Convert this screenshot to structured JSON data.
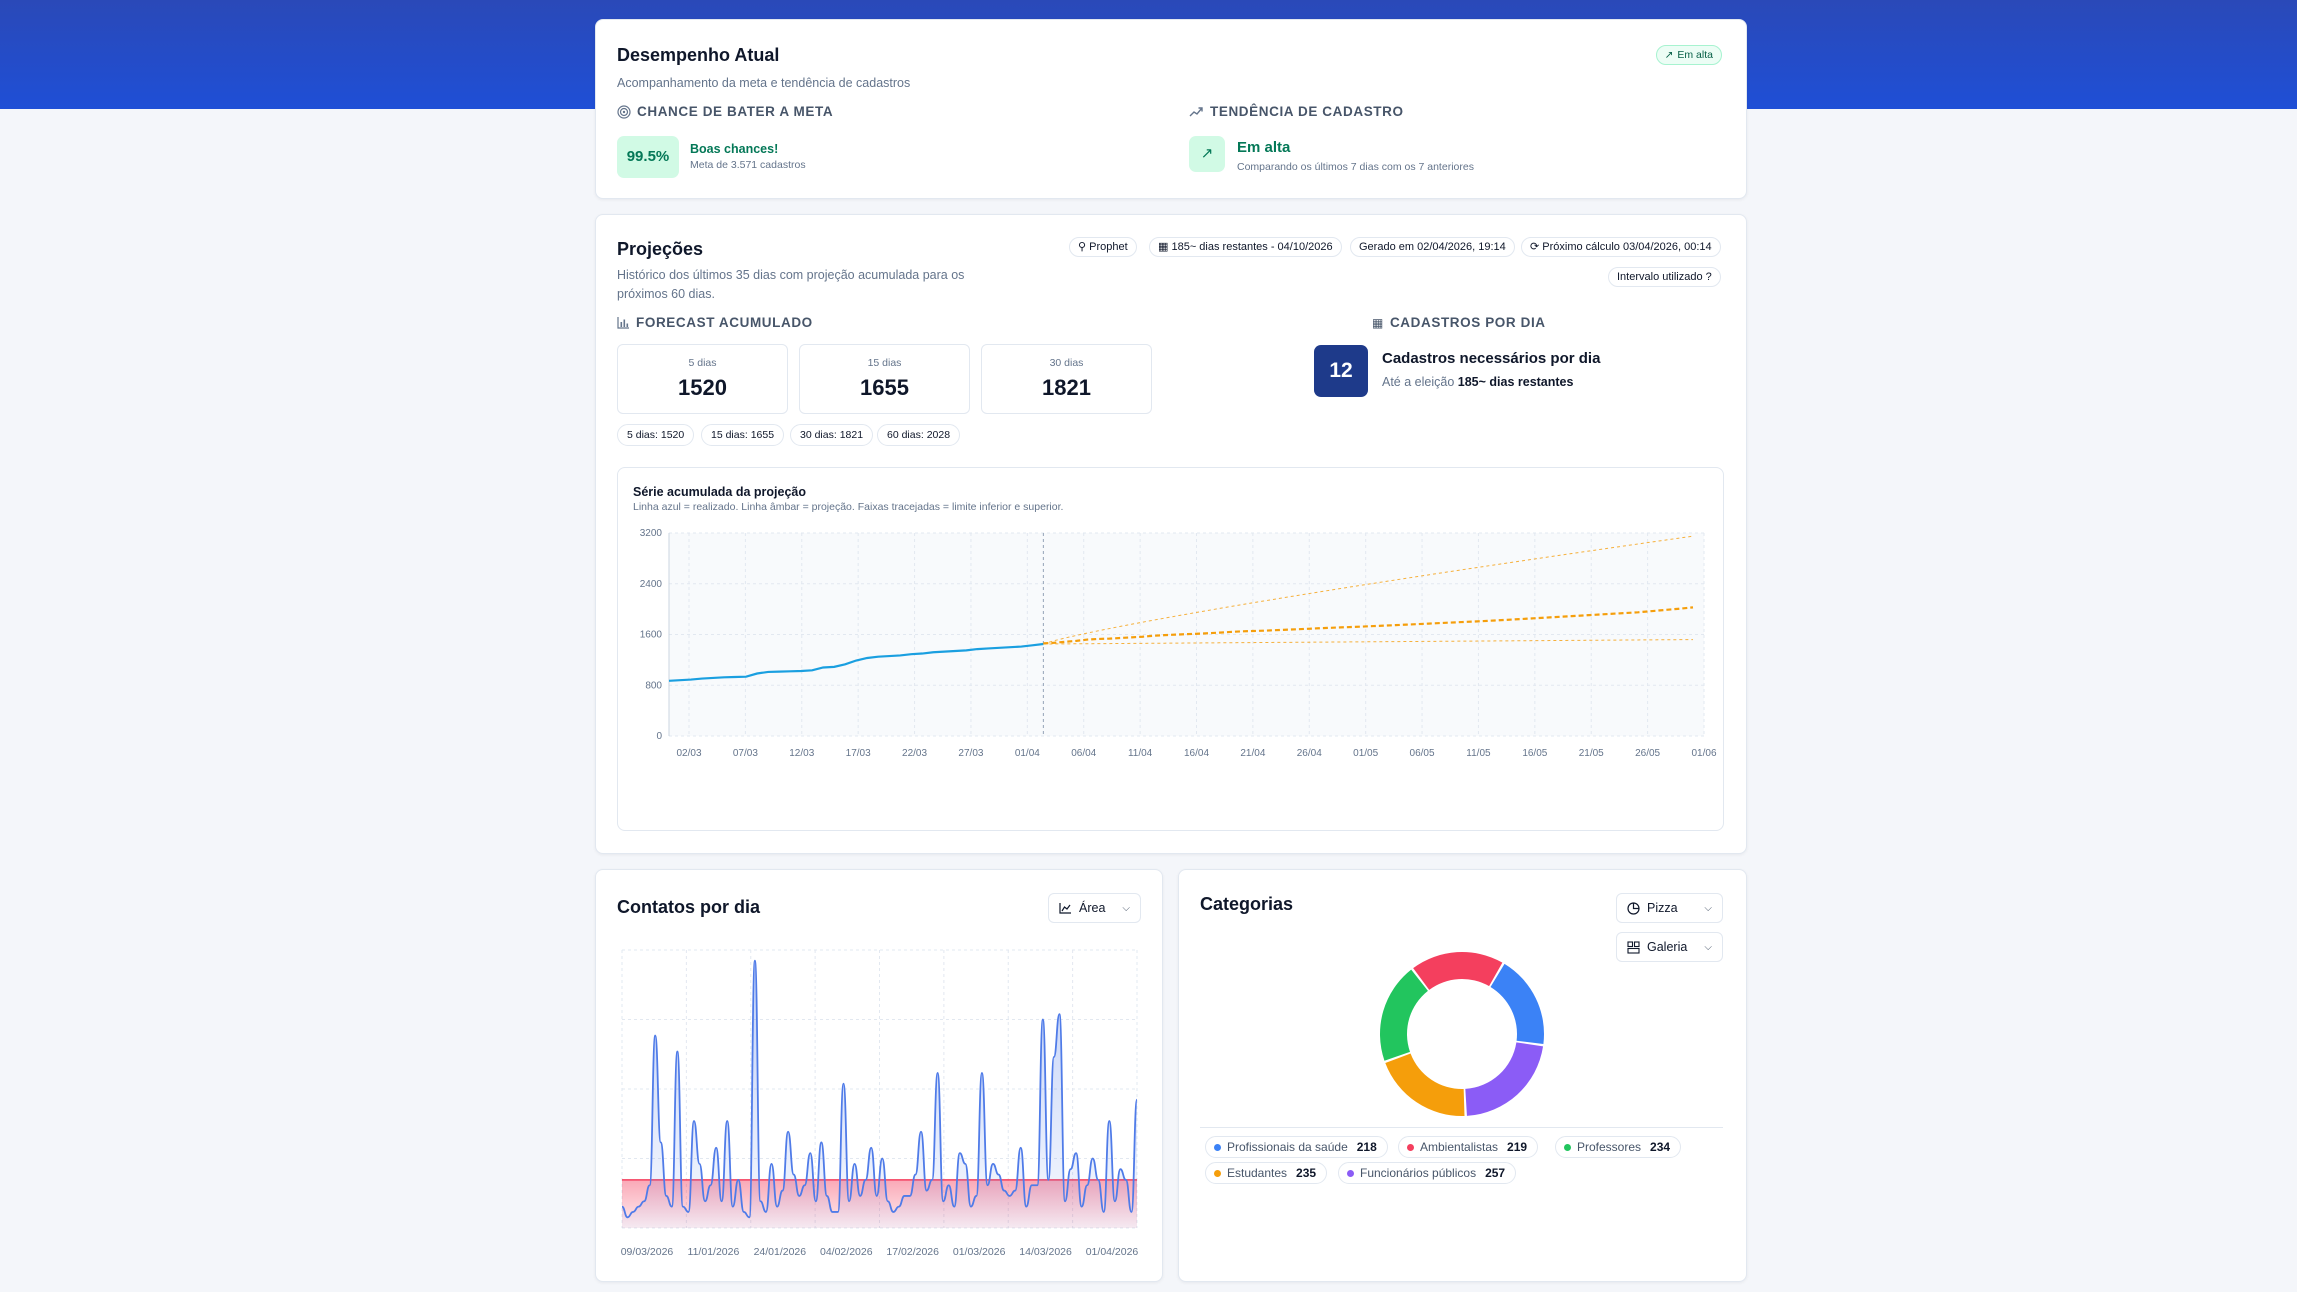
{
  "colors": {
    "band": "#2a49b8",
    "realized": "#1a9fe0",
    "projection": "#f59e0b",
    "success": "#059669",
    "successBg": "#d1fae5",
    "navy": "#1e3a8a",
    "areaLine": "#4f7be8",
    "areaBand": "#f43f5e"
  },
  "performance": {
    "title": "Desempenho Atual",
    "subtitle": "Acompanhamento da meta e tendência de cadastros",
    "badge": "Em alta",
    "chance": {
      "heading": "CHANCE DE BATER A META",
      "value": "99.5%",
      "label": "Boas chances!",
      "sub": "Meta de 3.571 cadastros"
    },
    "trend": {
      "heading": "TENDÊNCIA DE CADASTRO",
      "label": "Em alta",
      "sub": "Comparando os últimos 7 dias com os 7 anteriores"
    }
  },
  "projections": {
    "title": "Projeções",
    "subtitle": "Histórico dos últimos 35 dias com projeção acumulada para os próximos 60 dias.",
    "pills": {
      "model": "Prophet",
      "days": "185~ dias restantes - 04/10/2026",
      "generated": "Gerado em 02/04/2026, 19:14",
      "next": "Próximo cálculo 03/04/2026, 00:14",
      "interval": "Intervalo utilizado ?"
    },
    "forecast_heading": "FORECAST ACUMULADO",
    "boxes": [
      {
        "label": "5 dias",
        "value": "1520"
      },
      {
        "label": "15 dias",
        "value": "1655"
      },
      {
        "label": "30 dias",
        "value": "1821"
      }
    ],
    "chips": [
      "5 dias: 1520",
      "15 dias: 1655",
      "30 dias: 1821",
      "60 dias: 2028"
    ],
    "perday": {
      "heading": "CADASTROS POR DIA",
      "value": "12",
      "title": "Cadastros necessários por dia",
      "prefix": "Até a eleição",
      "strong": "185~ dias restantes"
    },
    "series_title": "Série acumulada da projeção",
    "series_note": "Linha azul = realizado. Linha âmbar = projeção. Faixas tracejadas = limite inferior e superior."
  },
  "contacts": {
    "title": "Contatos por dia",
    "select": "Área"
  },
  "categories": {
    "title": "Categorias",
    "select_type": "Pizza",
    "select_view": "Galeria"
  },
  "chart_data": [
    {
      "type": "line",
      "title": "Série acumulada da projeção",
      "yticks": [
        0,
        800,
        1600,
        2400,
        3200
      ],
      "ylim": [
        0,
        3200
      ],
      "xticks": [
        "02/03",
        "07/03",
        "12/03",
        "17/03",
        "22/03",
        "27/03",
        "01/04",
        "06/04",
        "11/04",
        "16/04",
        "21/04",
        "26/04",
        "01/05",
        "06/05",
        "11/05",
        "16/05",
        "21/05",
        "26/05",
        "01/06"
      ],
      "grid": true,
      "realized": [
        870,
        880,
        890,
        905,
        915,
        925,
        930,
        935,
        985,
        1010,
        1015,
        1020,
        1025,
        1035,
        1080,
        1090,
        1130,
        1190,
        1230,
        1250,
        1260,
        1270,
        1290,
        1300,
        1320,
        1330,
        1340,
        1350,
        1370,
        1380,
        1390,
        1400,
        1410,
        1430,
        1450
      ],
      "projection": [
        1460,
        1470,
        1485,
        1500,
        1520,
        1530,
        1535,
        1545,
        1555,
        1565,
        1580,
        1590,
        1598,
        1605,
        1612,
        1620,
        1630,
        1640,
        1650,
        1655,
        1660,
        1668,
        1675,
        1682,
        1690,
        1698,
        1705,
        1712,
        1718,
        1725,
        1733,
        1740,
        1748,
        1756,
        1764,
        1772,
        1780,
        1788,
        1796,
        1804,
        1812,
        1821,
        1830,
        1840,
        1850,
        1860,
        1870,
        1880,
        1890,
        1900,
        1910,
        1920,
        1930,
        1940,
        1950,
        1965,
        1980,
        1995,
        2010,
        2028
      ],
      "upper_end": 3150,
      "lower_end": 1520
    },
    {
      "type": "area",
      "title": "Contatos por dia",
      "xticks": [
        "09/03/2026",
        "11/01/2026",
        "24/01/2026",
        "04/02/2026",
        "17/02/2026",
        "01/03/2026",
        "14/03/2026",
        "01/04/2026"
      ],
      "grid": true,
      "values": [
        4,
        2,
        3,
        4,
        5,
        8,
        36,
        16,
        6,
        4,
        33,
        4,
        3,
        20,
        12,
        5,
        8,
        15,
        5,
        20,
        4,
        9,
        3,
        2,
        50,
        5,
        3,
        12,
        4,
        7,
        18,
        10,
        6,
        8,
        14,
        5,
        16,
        6,
        3,
        3,
        27,
        5,
        12,
        6,
        9,
        15,
        6,
        13,
        5,
        3,
        4,
        6,
        6,
        10,
        18,
        7,
        9,
        29,
        5,
        8,
        4,
        14,
        12,
        4,
        6,
        29,
        8,
        12,
        10,
        7,
        6,
        7,
        15,
        4,
        8,
        8,
        39,
        9,
        32,
        40,
        5,
        11,
        14,
        4,
        8,
        13,
        9,
        3,
        20,
        5,
        11,
        9,
        3,
        24
      ],
      "band_level": 9
    },
    {
      "type": "pie",
      "title": "Categorias",
      "slices": [
        {
          "name": "Profissionais da saúde",
          "value": 218,
          "color": "#3b82f6"
        },
        {
          "name": "Funcionários públicos",
          "value": 257,
          "color": "#8b5cf6"
        },
        {
          "name": "Estudantes",
          "value": 235,
          "color": "#f59e0b"
        },
        {
          "name": "Professores",
          "value": 234,
          "color": "#22c55e"
        },
        {
          "name": "Ambientalistas",
          "value": 219,
          "color": "#f43f5e"
        }
      ],
      "legend": "bottom"
    }
  ]
}
